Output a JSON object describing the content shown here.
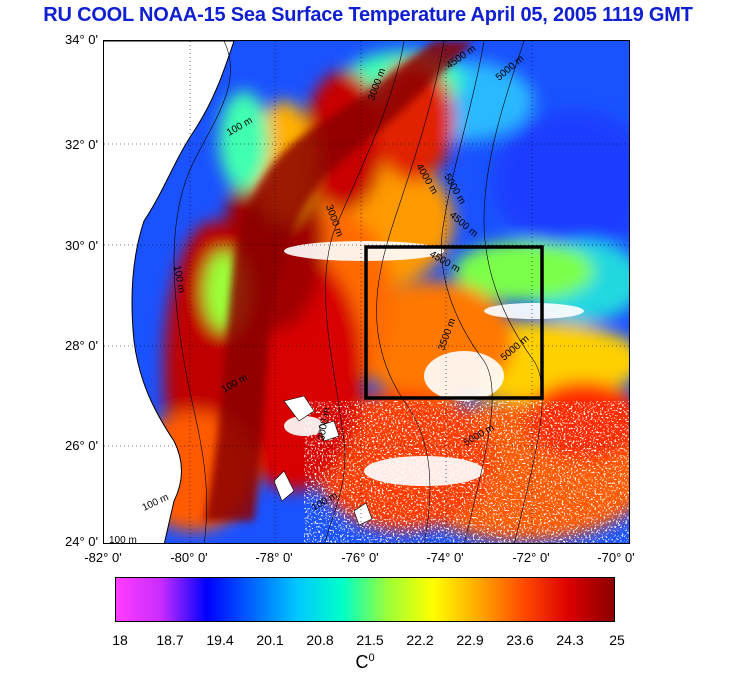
{
  "title": "RU COOL  NOAA-15 Sea Surface Temperature April 05, 2005 1119 GMT",
  "map": {
    "lat_labels": [
      "34° 0'",
      "32° 0'",
      "30° 0'",
      "28° 0'",
      "26° 0'",
      "24° 0'"
    ],
    "lon_labels": [
      "-82° 0'",
      "-80° 0'",
      "-78° 0'",
      "-76° 0'",
      "-74° 0'",
      "-72° 0'",
      "-70° 0'"
    ],
    "lat_range": [
      24,
      34
    ],
    "lon_range": [
      -82,
      -70
    ],
    "study_box": {
      "lon": [
        -76,
        -72
      ],
      "lat": [
        27,
        30
      ]
    },
    "contour_labels": [
      "100 m",
      "3000 m",
      "4500 m",
      "5000 m",
      "4000 m",
      "5000 m",
      "4500 m",
      "3000 m",
      "100 m",
      "4500 m",
      "3500 m",
      "5000 m",
      "5000 m",
      "100 m",
      "100 m",
      "3000 m",
      "100 m",
      "100 m"
    ]
  },
  "colorbar": {
    "labels": [
      "18",
      "18.7",
      "19.4",
      "20.1",
      "20.8",
      "21.5",
      "22.2",
      "22.9",
      "23.6",
      "24.3",
      "25"
    ],
    "unit": "C",
    "unit_sup": "0",
    "colors": [
      "#ff3cff",
      "#c82cff",
      "#0000ff",
      "#0064ff",
      "#00c8ff",
      "#00ffc8",
      "#9bff37",
      "#ffff00",
      "#ffaa00",
      "#ff4b00",
      "#dc0000",
      "#8b0000"
    ]
  }
}
